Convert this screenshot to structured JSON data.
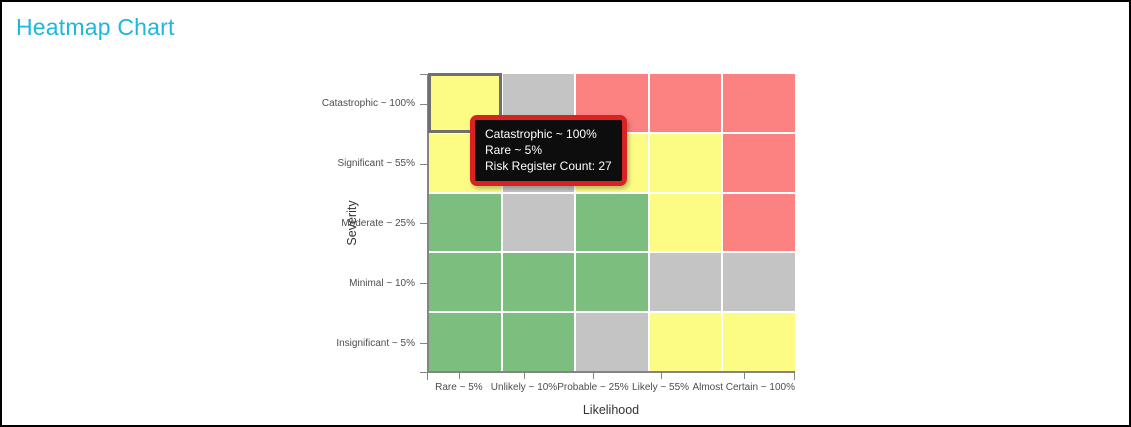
{
  "page": {
    "title": "Heatmap Chart"
  },
  "colors": {
    "title": "#1eb7dd",
    "axis": "#848484",
    "tick_label": "#4d4d4d",
    "selected_cell_outline": "#6f6f6f",
    "tooltip_border": "#d92222",
    "tooltip_bg": "#0d0d0d",
    "tooltip_text": "#ffffff"
  },
  "chart_data": {
    "type": "heatmap",
    "title": "Heatmap Chart",
    "xlabel": "Likelihood",
    "ylabel": "Severity",
    "x_categories": [
      "Rare ~ 5%",
      "Unlikely ~ 10%",
      "Probable ~ 25%",
      "Likely ~ 55%",
      "Almost Certain ~ 100%"
    ],
    "y_categories": [
      "Catastrophic ~ 100%",
      "Significant ~ 55%",
      "Moderate ~ 25%",
      "Minimal ~ 10%",
      "Insignificant ~ 5%"
    ],
    "palette": {
      "green": "#7cbe7d",
      "yellow": "#fcfc85",
      "gray": "#c4c4c4",
      "red": "#fc8282"
    },
    "cells": [
      [
        "yellow",
        "gray",
        "red",
        "red",
        "red"
      ],
      [
        "yellow",
        "gray",
        "yellow",
        "yellow",
        "red"
      ],
      [
        "green",
        "gray",
        "green",
        "yellow",
        "red"
      ],
      [
        "green",
        "green",
        "green",
        "gray",
        "gray"
      ],
      [
        "green",
        "green",
        "gray",
        "yellow",
        "yellow"
      ]
    ],
    "selected_cell": {
      "row": 0,
      "col": 0,
      "severity": "Catastrophic ~ 100%",
      "likelihood": "Rare ~ 5%",
      "risk_register_count": 27
    },
    "legend": false,
    "grid_gap_color": "#ffffff"
  },
  "tooltip": {
    "severity_line": "Catastrophic ~ 100%",
    "likelihood_line": "Rare ~ 5%",
    "count_line": "Risk Register Count: 27"
  }
}
